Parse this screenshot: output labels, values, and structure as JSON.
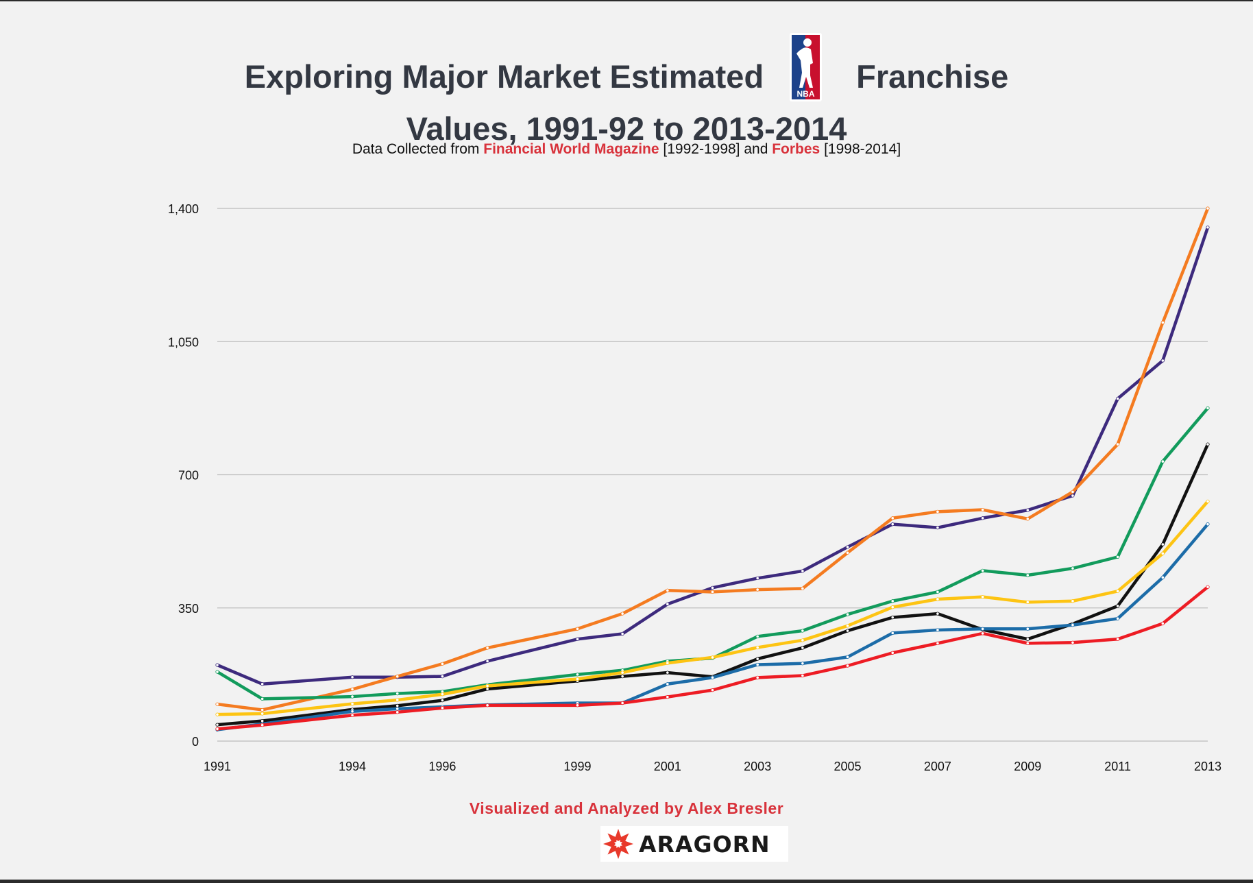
{
  "title": {
    "part1": "Exploring Major Market Estimated",
    "part2": "Franchise",
    "line2": "Values, 1991-92 to 2013-2014",
    "logo_text": "NBA"
  },
  "subtitle": {
    "prefix": "Data Collected from ",
    "source1": "Financial World Magazine",
    "range1": " [1992-1998] and ",
    "source2": "Forbes",
    "range2": " [1998-2014]"
  },
  "credit": "Visualized and Analyzed by Alex Bresler",
  "brand": {
    "name": "ARAGORN"
  },
  "chart_data": {
    "type": "line",
    "ylim": [
      0,
      1400
    ],
    "yticks": [
      0,
      350,
      700,
      1050,
      1400
    ],
    "ytick_labels": [
      "0",
      "350",
      "700",
      "1,050",
      "1,400"
    ],
    "x": [
      1991,
      1992,
      1994,
      1995,
      1996,
      1997,
      1999,
      2000,
      2001,
      2002,
      2003,
      2004,
      2005,
      2006,
      2007,
      2008,
      2009,
      2010,
      2011,
      2012,
      2013
    ],
    "x_tick_labels": [
      "1991",
      "1994",
      "1996",
      "1999",
      "2001",
      "2003",
      "2005",
      "2007",
      "2009",
      "2011",
      "2013"
    ],
    "grid": true,
    "series": [
      {
        "color": "#3d2a7d",
        "values": [
          200,
          150,
          168,
          168,
          170,
          210,
          268,
          282,
          360,
          403,
          428,
          447,
          510,
          570,
          561,
          586,
          607,
          645,
          900,
          1000,
          1350
        ]
      },
      {
        "color": "#f47b20",
        "values": [
          97,
          82,
          136,
          170,
          203,
          245,
          295,
          335,
          396,
          392,
          398,
          401,
          495,
          586,
          603,
          608,
          584,
          655,
          780,
          1100,
          1400
        ]
      },
      {
        "color": "#129b5c",
        "values": [
          182,
          111,
          117,
          125,
          130,
          148,
          175,
          186,
          210,
          218,
          275,
          290,
          333,
          368,
          392,
          448,
          436,
          454,
          484,
          735,
          875
        ]
      },
      {
        "color": "#111111",
        "values": [
          43,
          53,
          83,
          93,
          107,
          137,
          158,
          170,
          180,
          169,
          216,
          245,
          290,
          325,
          335,
          293,
          268,
          308,
          355,
          517,
          780
        ]
      },
      {
        "color": "#fdc413",
        "values": [
          70,
          72,
          98,
          108,
          123,
          145,
          163,
          180,
          205,
          220,
          246,
          265,
          303,
          352,
          373,
          379,
          365,
          368,
          394,
          493,
          630
        ]
      },
      {
        "color": "#1c6ca8",
        "values": [
          30,
          45,
          78,
          85,
          90,
          95,
          100,
          100,
          150,
          167,
          201,
          204,
          221,
          284,
          292,
          295,
          295,
          305,
          322,
          430,
          570
        ]
      },
      {
        "color": "#ed1c24",
        "values": [
          32,
          42,
          68,
          76,
          87,
          94,
          94,
          100,
          116,
          134,
          167,
          172,
          198,
          232,
          257,
          283,
          257,
          259,
          268,
          309,
          405
        ]
      }
    ]
  }
}
